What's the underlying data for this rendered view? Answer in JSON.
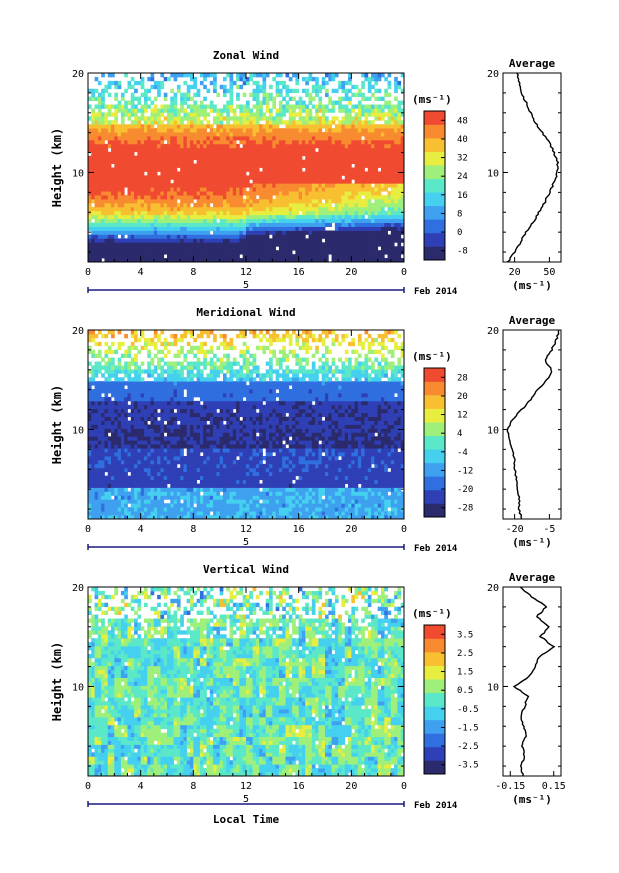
{
  "panels": [
    {
      "key": "zonal",
      "title": "Zonal Wind",
      "ylabel": "Height (km)",
      "yticks": [
        "20",
        "10"
      ],
      "xticks": [
        "0",
        "4",
        "8",
        "12",
        "16",
        "20",
        "0"
      ],
      "date_label": "5",
      "month_label": "Feb 2014",
      "unit_label": "(ms⁻¹)",
      "colorbar_ticks": [
        "48",
        "40",
        "32",
        "24",
        "16",
        "8",
        "0",
        "-8"
      ],
      "avg_title": "Average",
      "avg_yticks": [
        "20",
        "10"
      ],
      "avg_xticks": [
        "20",
        "50"
      ],
      "avg_unit": "(ms⁻¹)"
    },
    {
      "key": "meridional",
      "title": "Meridional Wind",
      "ylabel": "Height (km)",
      "yticks": [
        "20",
        "10"
      ],
      "xticks": [
        "0",
        "4",
        "8",
        "12",
        "16",
        "20",
        "0"
      ],
      "date_label": "5",
      "month_label": "Feb 2014",
      "unit_label": "(ms⁻¹)",
      "colorbar_ticks": [
        "28",
        "20",
        "12",
        "4",
        "-4",
        "-12",
        "-20",
        "-28"
      ],
      "avg_title": "Average",
      "avg_yticks": [
        "20",
        "10"
      ],
      "avg_xticks": [
        "-20",
        "-5"
      ],
      "avg_unit": "(ms⁻¹)"
    },
    {
      "key": "vertical",
      "title": "Vertical Wind",
      "ylabel": "Height (km)",
      "yticks": [
        "20",
        "10"
      ],
      "xticks": [
        "0",
        "4",
        "8",
        "12",
        "16",
        "20",
        "0"
      ],
      "date_label": "5",
      "month_label": "Feb 2014",
      "unit_label": "(ms⁻¹)",
      "colorbar_ticks": [
        "3.5",
        "2.5",
        "1.5",
        "0.5",
        "-0.5",
        "-1.5",
        "-2.5",
        "-3.5"
      ],
      "avg_title": "Average",
      "avg_yticks": [
        "20",
        "10"
      ],
      "avg_xticks": [
        "-0.15",
        "0.15"
      ],
      "avg_unit": "(ms⁻¹)"
    }
  ],
  "xlabel_bottom": "Local Time",
  "colors": {
    "jet": [
      "#2a2a6c",
      "#2f3fb5",
      "#2f6fe0",
      "#3fa0f0",
      "#45d0f0",
      "#5be8c8",
      "#9ef07a",
      "#e8ee40",
      "#f8c030",
      "#f88a30",
      "#f04a30"
    ],
    "axis": "#000000",
    "date_axis": "#1a1a80"
  },
  "chart_data": [
    {
      "type": "heatmap",
      "title": "Zonal Wind",
      "xlabel": "Local Time",
      "ylabel": "Height (km)",
      "xlim": [
        0,
        24
      ],
      "ylim": [
        1,
        20
      ],
      "color_range": [
        -12,
        52
      ],
      "colorbar_ticks": [
        48,
        40,
        32,
        24,
        16,
        8,
        0,
        -8
      ],
      "average_profile": {
        "xlim": [
          10,
          60
        ],
        "height": [
          1,
          2,
          3,
          4,
          5,
          6,
          7,
          8,
          9,
          10,
          11,
          12,
          13,
          14,
          15,
          16,
          17,
          18,
          19,
          20
        ],
        "value": [
          14,
          20,
          25,
          30,
          36,
          41,
          46,
          50,
          54,
          57,
          57,
          54,
          50,
          44,
          38,
          34,
          30,
          26,
          24,
          22
        ]
      }
    },
    {
      "type": "heatmap",
      "title": "Meridional Wind",
      "xlabel": "Local Time",
      "ylabel": "Height (km)",
      "xlim": [
        0,
        24
      ],
      "ylim": [
        1,
        20
      ],
      "color_range": [
        -32,
        32
      ],
      "colorbar_ticks": [
        28,
        20,
        12,
        4,
        -4,
        -12,
        -20,
        -28
      ],
      "average_profile": {
        "xlim": [
          -25,
          0
        ],
        "height": [
          1,
          2,
          3,
          4,
          5,
          6,
          7,
          8,
          9,
          10,
          11,
          12,
          13,
          14,
          15,
          16,
          17,
          18,
          19,
          20
        ],
        "value": [
          -17,
          -18,
          -18,
          -19,
          -19,
          -20,
          -20,
          -21,
          -22,
          -23,
          -21,
          -17,
          -13,
          -10,
          -6,
          -4,
          -7,
          -4,
          -2,
          -1
        ]
      }
    },
    {
      "type": "heatmap",
      "title": "Vertical Wind",
      "xlabel": "Local Time",
      "ylabel": "Height (km)",
      "xlim": [
        0,
        24
      ],
      "ylim": [
        1,
        20
      ],
      "color_range": [
        -4,
        4
      ],
      "colorbar_ticks": [
        3.5,
        2.5,
        1.5,
        0.5,
        -0.5,
        -1.5,
        -2.5,
        -3.5
      ],
      "average_profile": {
        "xlim": [
          -0.2,
          0.2
        ],
        "height": [
          1,
          2,
          3,
          4,
          5,
          6,
          7,
          8,
          9,
          10,
          11,
          12,
          13,
          14,
          15,
          16,
          17,
          18,
          19,
          20
        ],
        "value": [
          -0.06,
          -0.08,
          -0.05,
          -0.07,
          -0.04,
          -0.06,
          -0.08,
          -0.05,
          -0.03,
          -0.12,
          -0.02,
          0.02,
          0.05,
          0.15,
          0.06,
          0.12,
          0.03,
          0.1,
          0.0,
          -0.08
        ]
      }
    }
  ]
}
